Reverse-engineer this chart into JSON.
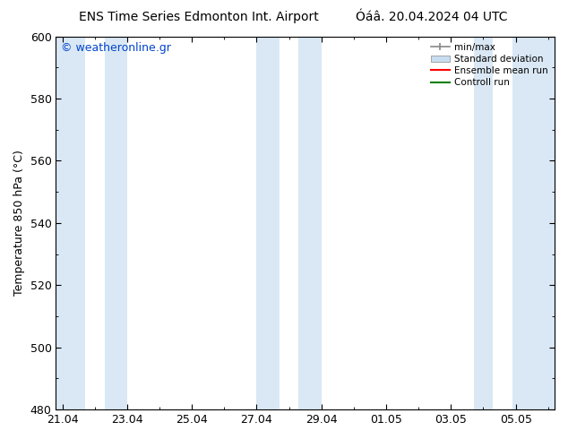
{
  "title_left": "ENS Time Series Edmonton Int. Airport",
  "title_right": "Óáâ. 20.04.2024 04 UTC",
  "ylabel": "Temperature 850 hPa (°C)",
  "watermark": "© weatheronline.gr",
  "ylim": [
    480,
    600
  ],
  "yticks": [
    480,
    500,
    520,
    540,
    560,
    580,
    600
  ],
  "x_tick_labels": [
    "21.04",
    "23.04",
    "25.04",
    "27.04",
    "29.04",
    "01.05",
    "03.05",
    "05.05"
  ],
  "x_tick_positions": [
    0,
    2,
    4,
    6,
    8,
    10,
    12,
    14
  ],
  "xlim": [
    -0.2,
    15.2
  ],
  "bg_color": "#ffffff",
  "plot_bg_color": "#ffffff",
  "light_blue_band_color": "#dae8f5",
  "shaded_bands": [
    {
      "x_start": -0.2,
      "x_end": 0.7
    },
    {
      "x_start": 1.3,
      "x_end": 2.0
    },
    {
      "x_start": 6.0,
      "x_end": 6.7
    },
    {
      "x_start": 7.3,
      "x_end": 8.0
    },
    {
      "x_start": 12.7,
      "x_end": 13.3
    },
    {
      "x_start": 13.9,
      "x_end": 15.2
    }
  ],
  "minmax_color": "#a8c8e8",
  "stddev_color": "#c8ddf0",
  "ensemble_mean_color": "#ff0000",
  "control_run_color": "#008000",
  "legend_labels": [
    "min/max",
    "Standard deviation",
    "Ensemble mean run",
    "Controll run"
  ],
  "tick_color": "#000000",
  "title_fontsize": 10,
  "axis_label_fontsize": 9,
  "watermark_fontsize": 9,
  "watermark_color": "#0044cc"
}
